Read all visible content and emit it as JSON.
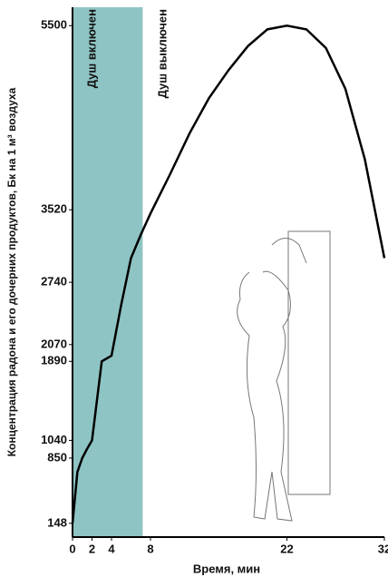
{
  "chart_data": {
    "type": "line",
    "x_label": "Время, мин",
    "y_label": "Концентрация радона и его дочерних продуктов, Бк на 1 м³ воздуха",
    "x": [
      0,
      0.5,
      1,
      1.5,
      2,
      3,
      4,
      5,
      6,
      7,
      8,
      10,
      12,
      14,
      16,
      18,
      20,
      22,
      24,
      26,
      28,
      30,
      32
    ],
    "series": [
      {
        "name": "Концентрация радона",
        "color": "#000000",
        "values": [
          148,
          700,
          850,
          950,
          1040,
          1890,
          1950,
          2500,
          3000,
          3250,
          3480,
          3900,
          4340,
          4720,
          5020,
          5280,
          5460,
          5500,
          5460,
          5260,
          4820,
          4060,
          3000
        ]
      }
    ],
    "xlim": [
      0,
      32
    ],
    "xticks": [
      0,
      2,
      4,
      8,
      22,
      32
    ],
    "ylim": [
      0,
      5600
    ],
    "yticks": [
      148,
      850,
      1040,
      1890,
      2070,
      2740,
      3520,
      5500
    ],
    "shaded_region": {
      "label": "Душ включен",
      "xlim": [
        0,
        7.2
      ],
      "color": "#8fc4c4"
    },
    "annotation": {
      "text": "Душ выключен",
      "x": 8.2
    }
  }
}
